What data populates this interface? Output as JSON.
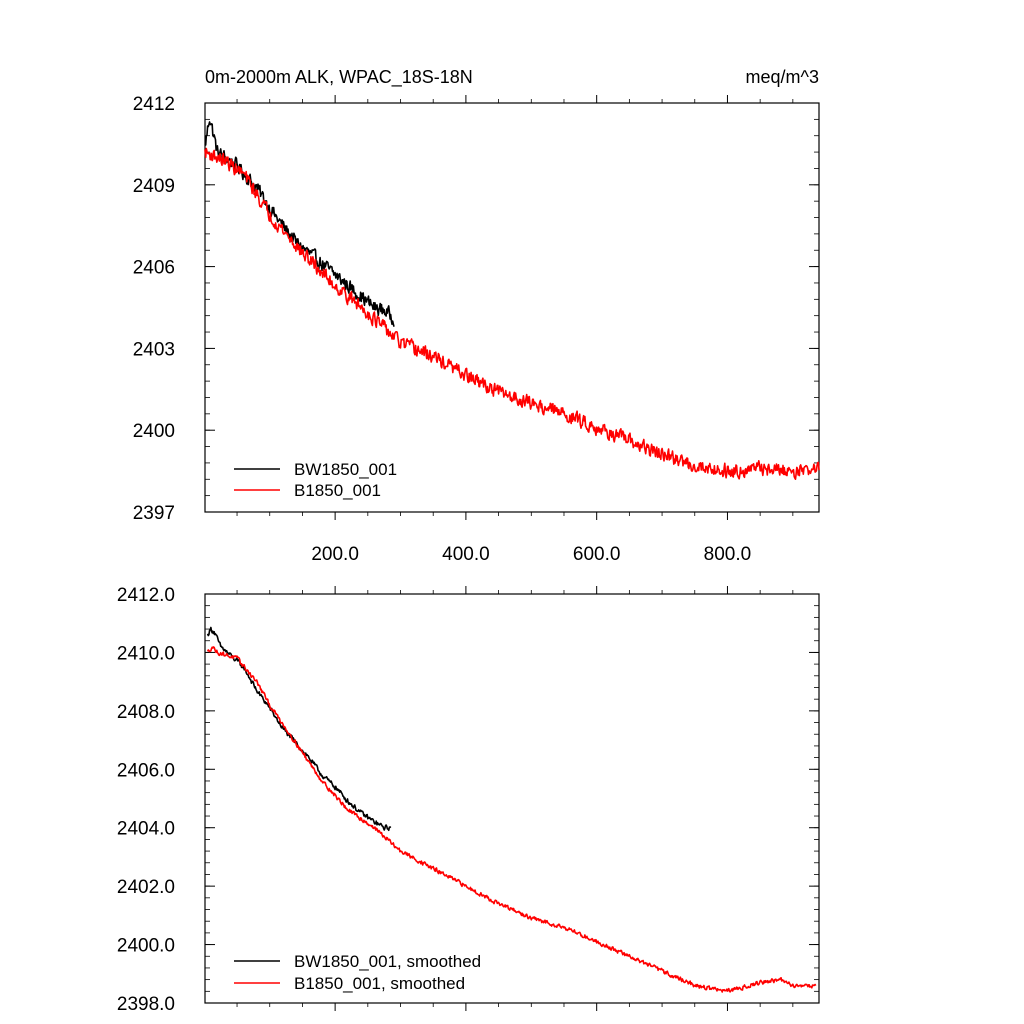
{
  "chart_data": [
    {
      "type": "line",
      "title": "0m-2000m ALK, WPAC_18S-18N",
      "units": "meq/m^3",
      "xlim": [
        1,
        940
      ],
      "ylim": [
        2397,
        2412
      ],
      "xticks": [
        200,
        400,
        600,
        800
      ],
      "xtick_labels": [
        "200.0",
        "400.0",
        "600.0",
        "800.0"
      ],
      "yticks": [
        2397,
        2400,
        2403,
        2406,
        2409,
        2412
      ],
      "ytick_labels": [
        "2397",
        "2400",
        "2403",
        "2406",
        "2409",
        "2412"
      ],
      "legend_position": "bottom-left",
      "series": [
        {
          "name": "BW1850_001",
          "color": "#000000",
          "x_start": 1,
          "x_end": 290,
          "anchors": [
            [
              1,
              2410.4
            ],
            [
              8,
              2411.5
            ],
            [
              20,
              2410.2
            ],
            [
              50,
              2409.7
            ],
            [
              80,
              2408.9
            ],
            [
              110,
              2407.8
            ],
            [
              140,
              2406.9
            ],
            [
              170,
              2406.3
            ],
            [
              200,
              2405.7
            ],
            [
              230,
              2405.1
            ],
            [
              260,
              2404.5
            ],
            [
              275,
              2404.4
            ],
            [
              290,
              2404.1
            ]
          ],
          "noise": 0.35
        },
        {
          "name": "B1850_001",
          "color": "#ff0000",
          "x_start": 1,
          "x_end": 940,
          "anchors": [
            [
              1,
              2410.2
            ],
            [
              30,
              2409.9
            ],
            [
              60,
              2409.4
            ],
            [
              100,
              2407.9
            ],
            [
              150,
              2406.5
            ],
            [
              200,
              2405.3
            ],
            [
              250,
              2404.3
            ],
            [
              300,
              2403.2
            ],
            [
              350,
              2402.7
            ],
            [
              400,
              2402.0
            ],
            [
              450,
              2401.4
            ],
            [
              500,
              2401.0
            ],
            [
              550,
              2400.6
            ],
            [
              600,
              2400.1
            ],
            [
              650,
              2399.6
            ],
            [
              700,
              2399.1
            ],
            [
              750,
              2398.7
            ],
            [
              800,
              2398.5
            ],
            [
              850,
              2398.6
            ],
            [
              900,
              2398.5
            ],
            [
              940,
              2398.6
            ]
          ],
          "noise": 0.35
        }
      ]
    },
    {
      "type": "line",
      "xlim": [
        1,
        940
      ],
      "ylim": [
        2398,
        2412
      ],
      "xticks": [
        200,
        400,
        600,
        800
      ],
      "yticks": [
        2398,
        2400,
        2402,
        2404,
        2406,
        2408,
        2410,
        2412
      ],
      "ytick_labels": [
        "2398.0",
        "2400.0",
        "2402.0",
        "2404.0",
        "2406.0",
        "2408.0",
        "2410.0",
        "2412.0"
      ],
      "legend_position": "bottom-left",
      "series": [
        {
          "name": "BW1850_001, smoothed",
          "color": "#000000",
          "x_start": 5,
          "x_end": 285,
          "anchors": [
            [
              5,
              2410.6
            ],
            [
              10,
              2410.8
            ],
            [
              15,
              2410.7
            ],
            [
              25,
              2410.2
            ],
            [
              40,
              2409.9
            ],
            [
              60,
              2409.5
            ],
            [
              80,
              2408.7
            ],
            [
              100,
              2408.1
            ],
            [
              120,
              2407.4
            ],
            [
              140,
              2406.9
            ],
            [
              160,
              2406.4
            ],
            [
              180,
              2405.8
            ],
            [
              200,
              2405.4
            ],
            [
              220,
              2404.9
            ],
            [
              240,
              2404.5
            ],
            [
              260,
              2404.2
            ],
            [
              275,
              2404.0
            ],
            [
              285,
              2404.0
            ]
          ],
          "noise": 0.12
        },
        {
          "name": "B1850_001, smoothed",
          "color": "#ff0000",
          "x_start": 5,
          "x_end": 935,
          "anchors": [
            [
              5,
              2410.0
            ],
            [
              12,
              2410.2
            ],
            [
              20,
              2410.0
            ],
            [
              50,
              2409.8
            ],
            [
              80,
              2409.0
            ],
            [
              100,
              2408.2
            ],
            [
              140,
              2406.9
            ],
            [
              180,
              2405.6
            ],
            [
              220,
              2404.6
            ],
            [
              260,
              2404.0
            ],
            [
              300,
              2403.2
            ],
            [
              350,
              2402.6
            ],
            [
              400,
              2402.0
            ],
            [
              450,
              2401.4
            ],
            [
              500,
              2400.9
            ],
            [
              550,
              2400.6
            ],
            [
              600,
              2400.1
            ],
            [
              650,
              2399.6
            ],
            [
              700,
              2399.1
            ],
            [
              750,
              2398.6
            ],
            [
              800,
              2398.4
            ],
            [
              850,
              2398.7
            ],
            [
              880,
              2398.8
            ],
            [
              900,
              2398.6
            ],
            [
              935,
              2398.6
            ]
          ],
          "noise": 0.1
        }
      ]
    }
  ]
}
